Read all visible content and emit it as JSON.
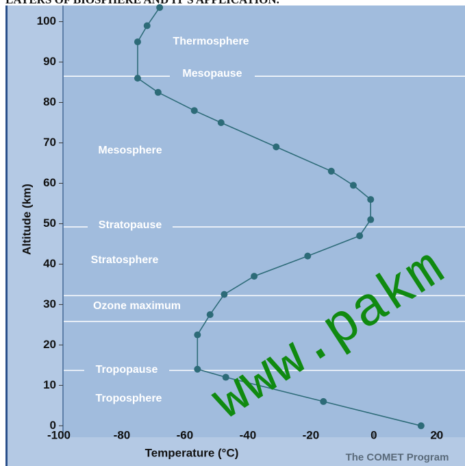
{
  "chart_data": {
    "type": "line",
    "title": "LAYERS OF BIOSPHERE AND IT'S APPLICATION.",
    "x_label": "Temperature (°C)",
    "y_label": "Altitude (km)",
    "credit": "The COMET Program",
    "watermark": "www.pakm",
    "x": [
      -68,
      -72,
      -75,
      -75,
      -68.5,
      -57,
      -48.5,
      -31,
      -13.5,
      -6.5,
      -1,
      -1,
      -4.5,
      -21,
      -38,
      -47.5,
      -52,
      -56,
      -56,
      -47,
      -16,
      15
    ],
    "values": [
      103.5,
      99,
      95,
      86,
      82.5,
      78,
      75,
      69,
      63,
      59.5,
      56,
      51,
      47,
      42,
      37,
      32.5,
      27.5,
      22.5,
      14,
      12,
      6,
      0
    ],
    "color": "#2d6b78",
    "xlim": [
      -100,
      27
    ],
    "ylim": [
      -3,
      104
    ],
    "xticks": [
      -100,
      -80,
      -60,
      -40,
      -20,
      0,
      20
    ],
    "yticks": [
      0,
      10,
      20,
      30,
      40,
      50,
      60,
      70,
      80,
      90,
      100
    ],
    "reference_lines": [
      86.5,
      49.2,
      32.2,
      25.8,
      13.7
    ],
    "annotations": [
      "Thermosphere",
      "Mesopause",
      "Mesosphere",
      "Stratopause",
      "Stratosphere",
      "Ozone maximum",
      "Tropopause",
      "Troposphere"
    ]
  }
}
